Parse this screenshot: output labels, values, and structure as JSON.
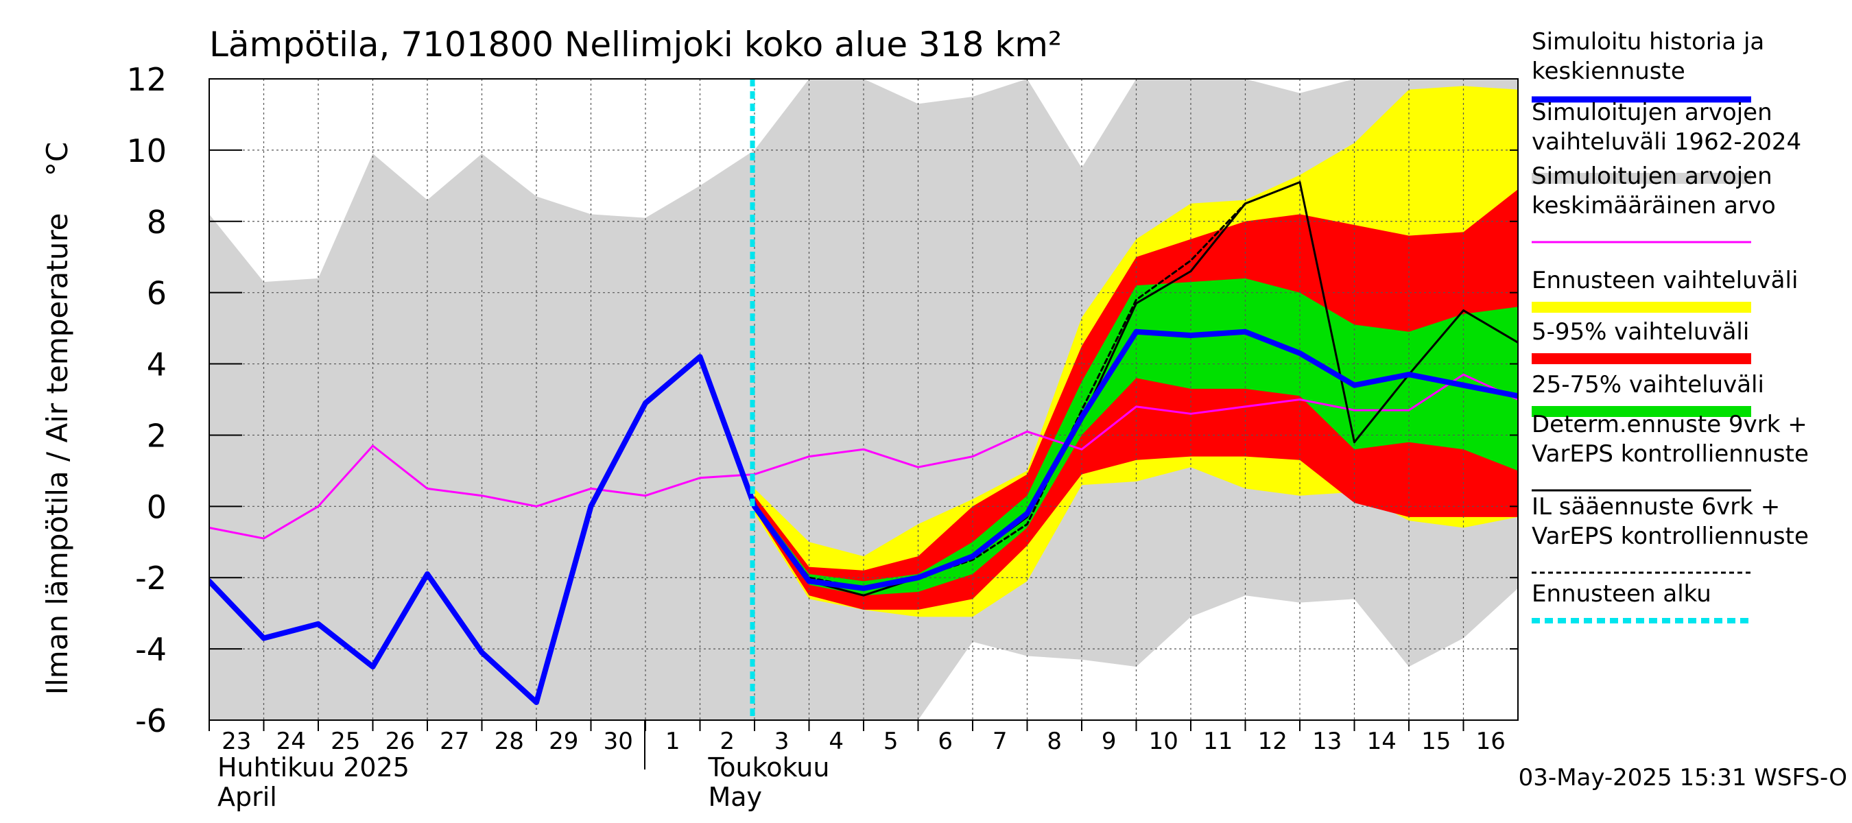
{
  "chart_data": {
    "type": "area",
    "title": "Lämpötila, 7101800 Nellimjoki koko alue 318 km²",
    "ylabel": "Ilman lämpötila / Air temperature    °C",
    "ylim": [
      -6,
      12
    ],
    "yticks": [
      -6,
      -4,
      -2,
      0,
      2,
      4,
      6,
      8,
      10,
      12
    ],
    "x": [
      "2025-04-23",
      "2025-04-24",
      "2025-04-25",
      "2025-04-26",
      "2025-04-27",
      "2025-04-28",
      "2025-04-29",
      "2025-04-30",
      "2025-05-01",
      "2025-05-02",
      "2025-05-03",
      "2025-05-04",
      "2025-05-05",
      "2025-05-06",
      "2025-05-07",
      "2025-05-08",
      "2025-05-09",
      "2025-05-10",
      "2025-05-11",
      "2025-05-12",
      "2025-05-13",
      "2025-05-14",
      "2025-05-15",
      "2025-05-16",
      "2025-05-17"
    ],
    "tick_labels": [
      "23",
      "24",
      "25",
      "26",
      "27",
      "28",
      "29",
      "30",
      "1",
      "2",
      "3",
      "4",
      "5",
      "6",
      "7",
      "8",
      "9",
      "10",
      "11",
      "12",
      "13",
      "14",
      "15",
      "16"
    ],
    "month_labels": [
      {
        "line1": "Huhtikuu  2025",
        "line2": "April",
        "at": "2025-04-23"
      },
      {
        "line1": "Toukokuu",
        "line2": "May",
        "at": "2025-05-02"
      }
    ],
    "forecast_start": "2025-05-03",
    "series": [
      {
        "name": "Simuloitujen arvojen vaihteluväli 1962-2024",
        "kind": "band",
        "color": "#d3d3d3",
        "low": [
          -6,
          -6,
          -6,
          -6,
          -6,
          -6,
          -6,
          -6,
          -6,
          -6,
          -6,
          -6,
          -6,
          -6,
          -3.8,
          -4.2,
          -4.3,
          -4.5,
          -3.1,
          -2.5,
          -2.7,
          -2.6,
          -4.5,
          -3.7,
          -2.3
        ],
        "high": [
          8.2,
          6.3,
          6.4,
          9.9,
          8.6,
          9.9,
          8.7,
          8.2,
          8.1,
          9.0,
          10.0,
          12.0,
          12.0,
          11.3,
          11.5,
          12.0,
          9.5,
          12.0,
          12.0,
          12.0,
          11.6,
          12.0,
          12.0,
          12.0,
          12.0
        ]
      },
      {
        "name": "Ennusteen vaihteluväli",
        "kind": "band",
        "color": "#ffff00",
        "low": [
          null,
          null,
          null,
          null,
          null,
          null,
          null,
          null,
          null,
          null,
          -0.2,
          -2.6,
          -2.9,
          -3.1,
          -3.1,
          -2.1,
          0.6,
          0.7,
          1.1,
          0.5,
          0.3,
          0.4,
          -0.4,
          -0.6,
          -0.3
        ],
        "high": [
          null,
          null,
          null,
          null,
          null,
          null,
          null,
          null,
          null,
          null,
          0.5,
          -1.0,
          -1.4,
          -0.5,
          0.2,
          1.0,
          5.3,
          7.5,
          8.5,
          8.6,
          9.3,
          10.2,
          11.7,
          11.8,
          11.7
        ]
      },
      {
        "name": "5-95% vaihteluväli",
        "kind": "band",
        "color": "#ff0000",
        "low": [
          null,
          null,
          null,
          null,
          null,
          null,
          null,
          null,
          null,
          null,
          -0.1,
          -2.5,
          -2.9,
          -2.9,
          -2.6,
          -1.1,
          0.9,
          1.3,
          1.4,
          1.4,
          1.3,
          0.1,
          -0.3,
          -0.3,
          -0.3
        ],
        "high": [
          null,
          null,
          null,
          null,
          null,
          null,
          null,
          null,
          null,
          null,
          0.3,
          -1.7,
          -1.8,
          -1.4,
          0.0,
          0.9,
          4.5,
          7.0,
          7.5,
          8.0,
          8.2,
          7.9,
          7.6,
          7.7,
          8.9
        ]
      },
      {
        "name": "25-75% vaihteluväli",
        "kind": "band",
        "color": "#00e000",
        "low": [
          null,
          null,
          null,
          null,
          null,
          null,
          null,
          null,
          null,
          null,
          -0.1,
          -2.2,
          -2.5,
          -2.4,
          -1.9,
          -0.6,
          2.0,
          3.6,
          3.3,
          3.3,
          3.1,
          1.6,
          1.8,
          1.6,
          1.0
        ],
        "high": [
          null,
          null,
          null,
          null,
          null,
          null,
          null,
          null,
          null,
          null,
          0.1,
          -1.9,
          -2.1,
          -1.9,
          -1.0,
          0.3,
          3.5,
          6.2,
          6.3,
          6.4,
          6.0,
          5.1,
          4.9,
          5.4,
          5.6
        ]
      },
      {
        "name": "Simuloitujen arvojen keskimääräinen arvo",
        "kind": "line",
        "color": "#ff00ff",
        "width": 3,
        "values": [
          -0.6,
          -0.9,
          0.0,
          1.7,
          0.5,
          0.3,
          0.0,
          0.5,
          0.3,
          0.8,
          0.9,
          1.4,
          1.6,
          1.1,
          1.4,
          2.1,
          1.6,
          2.8,
          2.6,
          2.8,
          3.0,
          2.7,
          2.7,
          3.7,
          3.0
        ]
      },
      {
        "name": "IL sääennuste 6vrk  + VarEPS kontrolliennuste",
        "kind": "line",
        "color": "#000000",
        "width": 3,
        "dash": "7,5",
        "values": [
          null,
          null,
          null,
          null,
          null,
          null,
          null,
          null,
          null,
          null,
          0.0,
          -2.0,
          -2.3,
          -2.0,
          -1.5,
          -0.5,
          2.7,
          5.8,
          6.9,
          8.5,
          null,
          null,
          null,
          null,
          null
        ]
      },
      {
        "name": "Determ.ennuste 9vrk + VarEPS kontrolliennuste",
        "kind": "line",
        "color": "#000000",
        "width": 3,
        "values": [
          null,
          null,
          null,
          null,
          null,
          null,
          null,
          0.0,
          2.9,
          4.2,
          0.0,
          -2.1,
          -2.5,
          -2.0,
          -1.4,
          -0.3,
          2.4,
          5.7,
          6.6,
          8.5,
          9.1,
          1.8,
          3.7,
          5.5,
          4.6
        ]
      },
      {
        "name": "Simuloitu historia ja keskiennuste",
        "kind": "line",
        "color": "#0000ff",
        "width": 8,
        "values": [
          -2.1,
          -3.7,
          -3.3,
          -4.5,
          -1.9,
          -4.1,
          -5.5,
          0.0,
          2.9,
          4.2,
          0.0,
          -2.1,
          -2.3,
          -2.0,
          -1.4,
          -0.2,
          2.5,
          4.9,
          4.8,
          4.9,
          4.3,
          3.4,
          3.7,
          3.4,
          3.1
        ]
      }
    ],
    "legend": {
      "placement": "right",
      "entries": [
        {
          "text": [
            "Simuloitu historia ja",
            "keskiennuste"
          ],
          "color": "#0000ff",
          "style": "thick"
        },
        {
          "text": [
            "Simuloitujen arvojen",
            "vaihteluväli 1962-2024"
          ],
          "color": "#d3d3d3",
          "style": "bar"
        },
        {
          "text": [
            "Simuloitujen arvojen",
            "keskimääräinen arvo"
          ],
          "color": "#ff00ff",
          "style": "thin"
        },
        {
          "text": [
            "Ennusteen vaihteluväli"
          ],
          "color": "#ffff00",
          "style": "bar"
        },
        {
          "text": [
            "5-95% vaihteluväli"
          ],
          "color": "#ff0000",
          "style": "bar"
        },
        {
          "text": [
            "25-75% vaihteluväli"
          ],
          "color": "#00e000",
          "style": "bar"
        },
        {
          "text": [
            "Determ.ennuste 9vrk +",
            "VarEPS kontrolliennuste"
          ],
          "color": "#000000",
          "style": "thin"
        },
        {
          "text": [
            "IL sääennuste 6vrk  +",
            "  VarEPS kontrolliennuste"
          ],
          "color": "#000000",
          "style": "dash"
        },
        {
          "text": [
            "Ennusteen alku"
          ],
          "color": "#00e5ee",
          "style": "cyan-dash"
        }
      ]
    },
    "footer": "03-May-2025 15:31 WSFS-O",
    "grid": true
  }
}
